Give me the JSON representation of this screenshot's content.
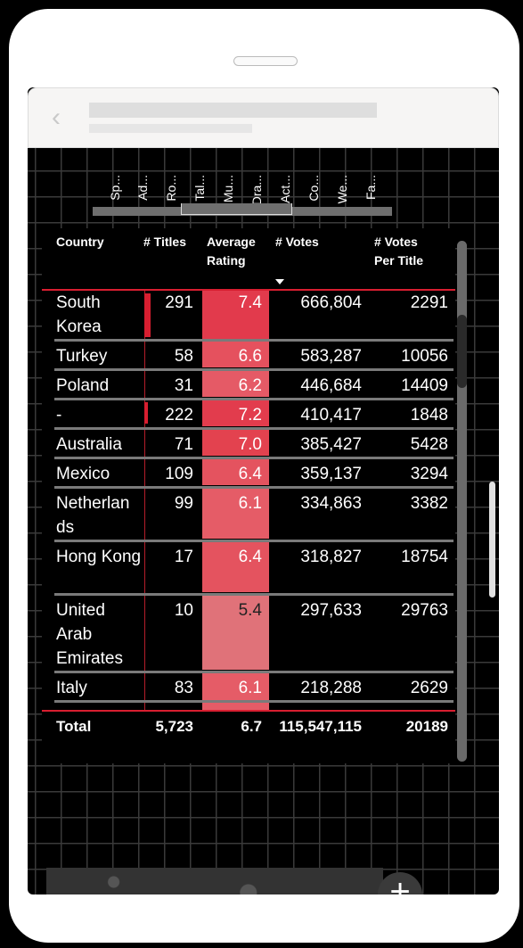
{
  "category_labels": [
    "Sp...",
    "Ad...",
    "Ro...",
    "Tal...",
    "Mu...",
    "Dra...",
    "Act...",
    "Co...",
    "We...",
    "Fa..."
  ],
  "table": {
    "headers": {
      "country": "Country",
      "titles": "# Titles",
      "rating_line1": "Average",
      "rating_line2": "Rating",
      "votes": "# Votes",
      "vpt_line1": "# Votes",
      "vpt_line2": "Per Title"
    },
    "rows": [
      {
        "country": "South Korea",
        "titles": "291",
        "rating": "7.4",
        "votes": "666,804",
        "vpt": "2291"
      },
      {
        "country": "Turkey",
        "titles": "58",
        "rating": "6.6",
        "votes": "583,287",
        "vpt": "10056"
      },
      {
        "country": "Poland",
        "titles": "31",
        "rating": "6.2",
        "votes": "446,684",
        "vpt": "14409"
      },
      {
        "country": "-",
        "titles": "222",
        "rating": "7.2",
        "votes": "410,417",
        "vpt": "1848"
      },
      {
        "country": "Australia",
        "titles": "71",
        "rating": "7.0",
        "votes": "385,427",
        "vpt": "5428"
      },
      {
        "country": "Mexico",
        "titles": "109",
        "rating": "6.4",
        "votes": "359,137",
        "vpt": "3294"
      },
      {
        "country": "Netherlands",
        "titles": "99",
        "rating": "6.1",
        "votes": "334,863",
        "vpt": "3382"
      },
      {
        "country": "Hong Kong",
        "titles": "17",
        "rating": "6.4",
        "votes": "318,827",
        "vpt": "18754"
      },
      {
        "country": "United Arab Emirates",
        "titles": "10",
        "rating": "5.4",
        "votes": "297,633",
        "vpt": "29763"
      },
      {
        "country": "Italy",
        "titles": "83",
        "rating": "6.1",
        "votes": "218,288",
        "vpt": "2629"
      }
    ],
    "total": {
      "label": "Total",
      "titles": "5,723",
      "rating": "6.7",
      "votes": "115,547,115",
      "vpt": "20189"
    }
  },
  "colors": {
    "accent": "#d81e30",
    "rating_high": "#e23a4c",
    "rating_low": "#e07279"
  }
}
